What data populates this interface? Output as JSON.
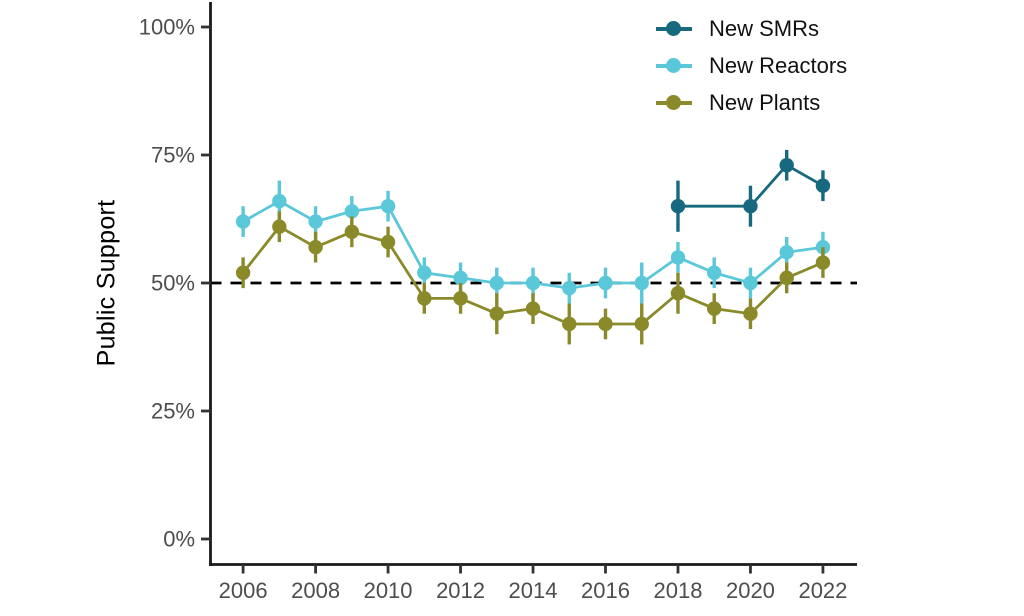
{
  "chart_data": {
    "type": "line",
    "title": "",
    "xlabel": "",
    "ylabel": "Public Support",
    "ylim": [
      0,
      100
    ],
    "xlim": [
      2005.1,
      2022.94
    ],
    "grid": false,
    "legend_position": "top-right",
    "yticks": {
      "values": [
        0,
        25,
        50,
        75,
        100
      ],
      "labels": [
        "0%",
        "25%",
        "50%",
        "75%",
        "100%"
      ]
    },
    "xticks": [
      2006,
      2008,
      2010,
      2012,
      2014,
      2016,
      2018,
      2020,
      2022
    ],
    "reference_line": {
      "y": 50,
      "style": "dashed",
      "color": "#000000"
    },
    "series": [
      {
        "name": "New SMRs",
        "color": "#16697e",
        "x": [
          2018,
          2020,
          2021,
          2022
        ],
        "values": [
          65,
          65,
          73,
          69
        ],
        "errors": [
          5,
          4,
          3,
          3
        ]
      },
      {
        "name": "New Reactors",
        "color": "#5bc8da",
        "x": [
          2006,
          2007,
          2008,
          2009,
          2010,
          2011,
          2012,
          2013,
          2014,
          2015,
          2016,
          2017,
          2018,
          2019,
          2020,
          2021,
          2022
        ],
        "values": [
          62,
          66,
          62,
          64,
          65,
          52,
          51,
          50,
          50,
          49,
          50,
          50,
          55,
          52,
          50,
          56,
          57
        ],
        "errors": [
          3,
          4,
          3,
          3,
          3,
          3,
          3,
          3,
          3,
          3,
          3,
          4,
          3,
          3,
          3,
          3,
          3
        ]
      },
      {
        "name": "New Plants",
        "color": "#8a8a2b",
        "x": [
          2006,
          2007,
          2008,
          2009,
          2010,
          2011,
          2012,
          2013,
          2014,
          2015,
          2016,
          2017,
          2018,
          2019,
          2020,
          2021,
          2022
        ],
        "values": [
          52,
          61,
          57,
          60,
          58,
          47,
          47,
          44,
          45,
          42,
          42,
          42,
          48,
          45,
          44,
          51,
          54
        ],
        "errors": [
          3,
          3,
          3,
          3,
          3,
          3,
          3,
          4,
          3,
          4,
          3,
          4,
          4,
          3,
          3,
          3,
          3
        ]
      }
    ]
  }
}
